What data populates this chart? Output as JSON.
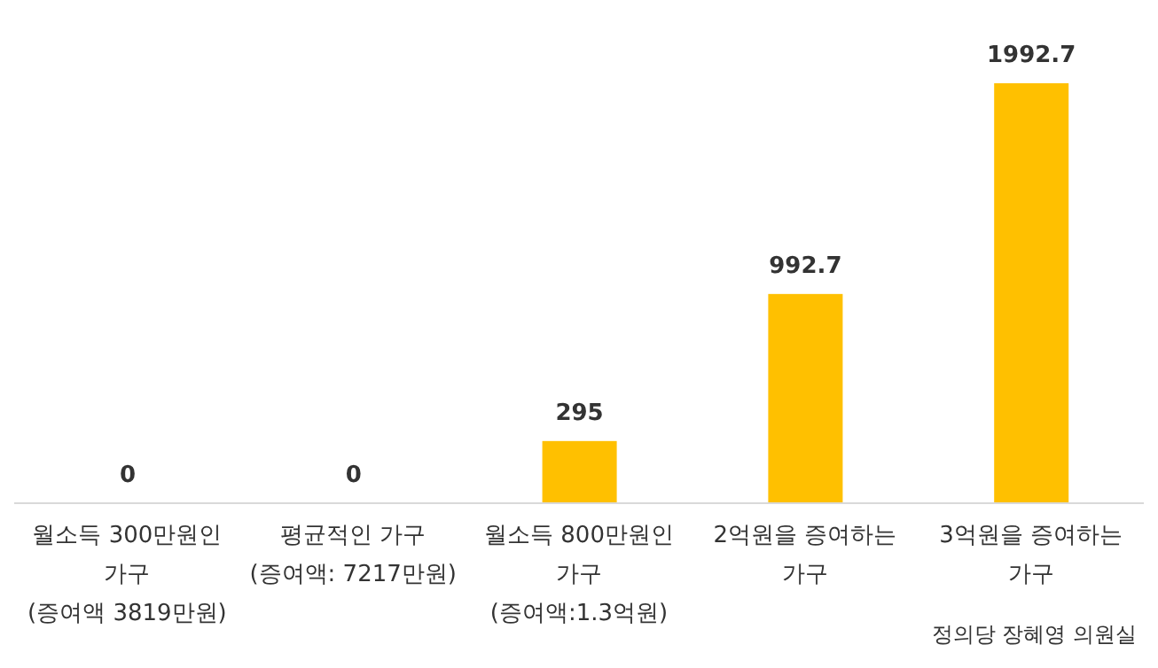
{
  "chart_data": {
    "type": "bar",
    "categories": [
      "월소득 300만원인\n가구\n(증여액 3819만원)",
      "평균적인 가구\n(증여액: 7217만원)",
      "월소득 800만원인\n가구\n(증여액:1.3억원)",
      "2억원을 증여하는\n가구",
      "3억원을 증여하는\n가구"
    ],
    "values": [
      0,
      0,
      295,
      992.7,
      1992.7
    ],
    "color": "#ffc000",
    "data_labels": true,
    "grid": false,
    "annotations": [
      "정의당 장혜영 의원실"
    ]
  }
}
